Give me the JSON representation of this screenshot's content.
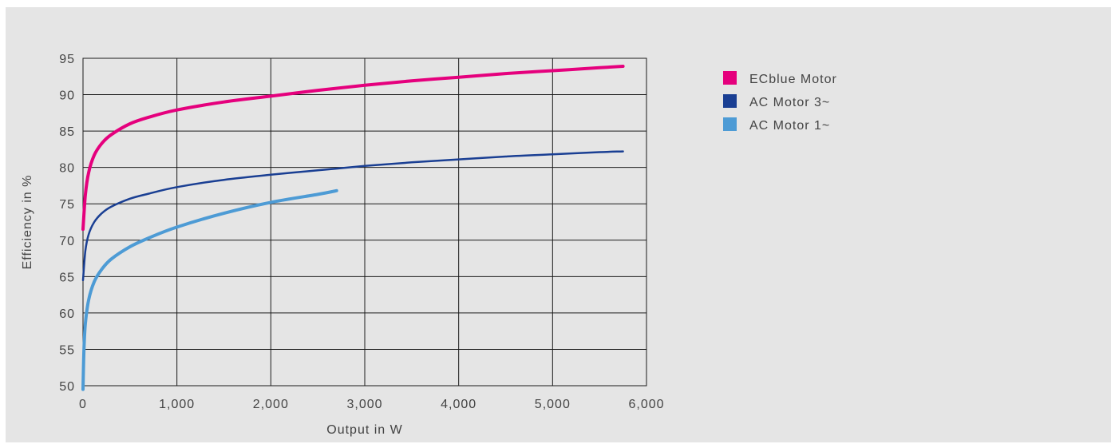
{
  "chart_data": {
    "type": "line",
    "xlabel": "Output in W",
    "ylabel": "Efficiency in %",
    "xlim": [
      0,
      6000
    ],
    "ylim": [
      50,
      95
    ],
    "xticks": [
      0,
      1000,
      2000,
      3000,
      4000,
      5000,
      6000
    ],
    "xtick_labels": [
      "0",
      "1,000",
      "2,000",
      "3,000",
      "4,000",
      "5,000",
      "6,000"
    ],
    "yticks": [
      50,
      55,
      60,
      65,
      70,
      75,
      80,
      85,
      90,
      95
    ],
    "ytick_labels": [
      "50",
      "55",
      "60",
      "65",
      "70",
      "75",
      "80",
      "85",
      "90",
      "95"
    ],
    "grid": true,
    "legend_position": "right",
    "series": [
      {
        "name": "ECblue Motor",
        "color": "#e5007d",
        "x": [
          0,
          25,
          60,
          120,
          200,
          300,
          500,
          700,
          1000,
          1500,
          2000,
          2500,
          3000,
          3500,
          4000,
          4500,
          5000,
          5500,
          5750
        ],
        "y": [
          71.5,
          76.2,
          79.3,
          81.7,
          83.3,
          84.5,
          86.0,
          86.9,
          87.9,
          89.0,
          89.8,
          90.6,
          91.3,
          91.9,
          92.4,
          92.9,
          93.3,
          93.7,
          93.9
        ]
      },
      {
        "name": "AC Motor 3~",
        "color": "#1a3f93",
        "x": [
          0,
          25,
          60,
          120,
          200,
          300,
          500,
          700,
          1000,
          1500,
          2000,
          2500,
          3000,
          3500,
          4000,
          4500,
          5000,
          5500,
          5750
        ],
        "y": [
          64.5,
          68.5,
          70.8,
          72.5,
          73.7,
          74.6,
          75.7,
          76.4,
          77.3,
          78.3,
          79.0,
          79.6,
          80.2,
          80.7,
          81.1,
          81.5,
          81.8,
          82.1,
          82.2
        ]
      },
      {
        "name": "AC Motor 1~",
        "color": "#4d9bd5",
        "x": [
          0,
          10,
          25,
          60,
          120,
          200,
          300,
          500,
          700,
          1000,
          1500,
          2000,
          2500,
          2700
        ],
        "y": [
          49.5,
          55.0,
          58.5,
          61.8,
          64.3,
          66.0,
          67.4,
          69.1,
          70.3,
          71.8,
          73.7,
          75.2,
          76.3,
          76.8
        ]
      }
    ]
  }
}
